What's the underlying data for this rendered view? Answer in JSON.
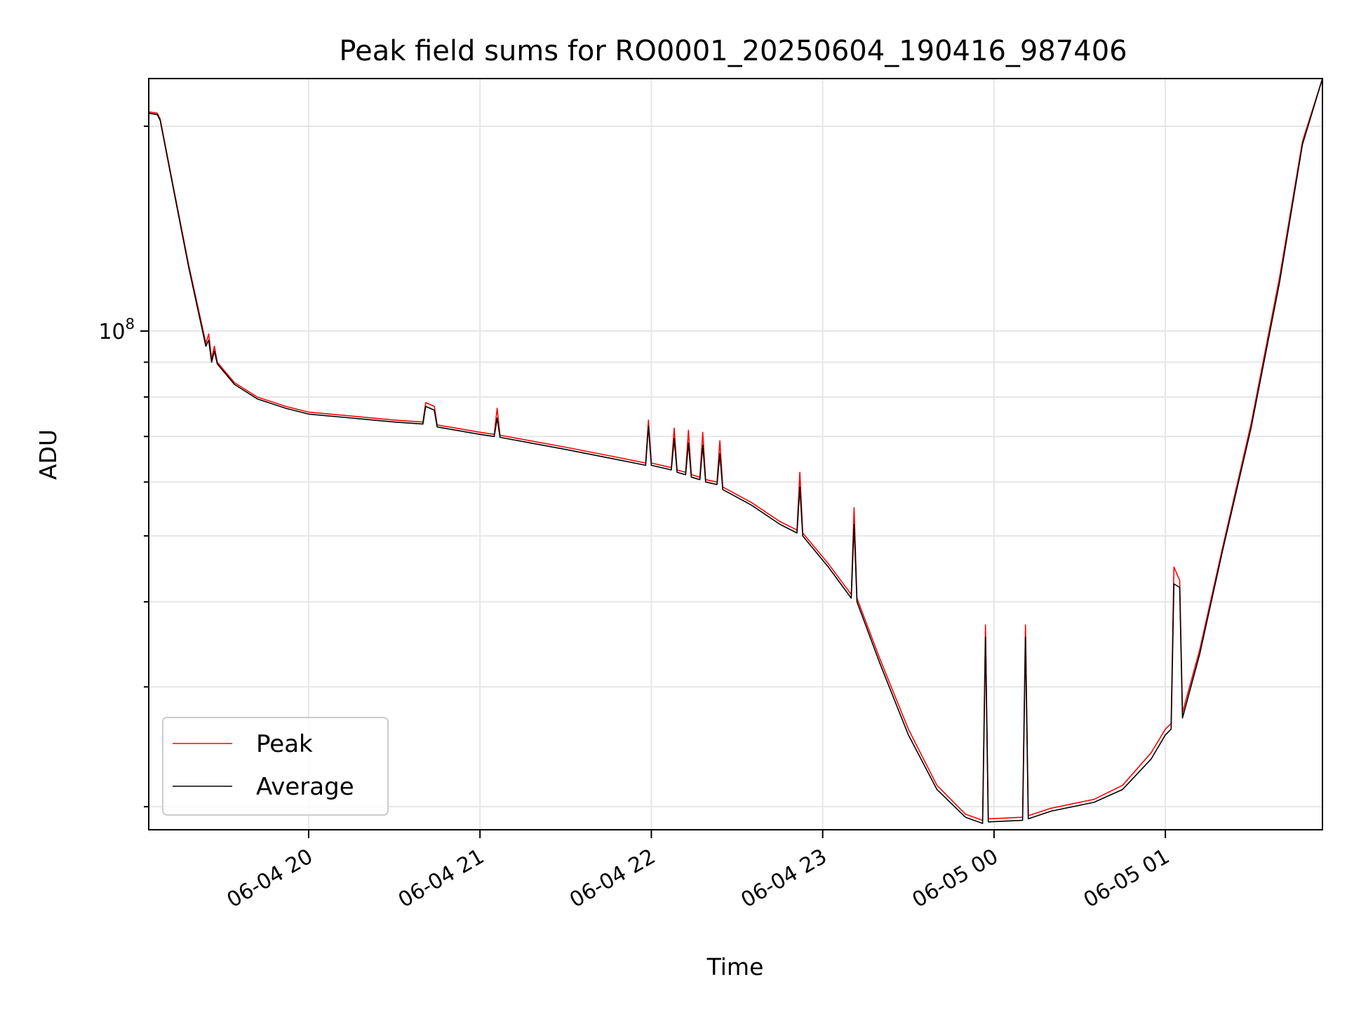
{
  "chart_data": {
    "type": "line",
    "title": "Peak field sums for RO0001_20250604_190416_987406",
    "xlabel": "Time",
    "ylabel": "ADU",
    "x_unit": "datetime",
    "xlim": [
      "2025-06-04 19:04",
      "2025-06-05 01:55"
    ],
    "ylim": [
      18500000,
      235000000
    ],
    "yscale": "log",
    "grid": true,
    "legend_position": "lower-left",
    "x_ticks": [
      {
        "value": "2025-06-04 20:00",
        "label": "06-04 20"
      },
      {
        "value": "2025-06-04 21:00",
        "label": "06-04 21"
      },
      {
        "value": "2025-06-04 22:00",
        "label": "06-04 22"
      },
      {
        "value": "2025-06-04 23:00",
        "label": "06-04 23"
      },
      {
        "value": "2025-06-05 00:00",
        "label": "06-05 00"
      },
      {
        "value": "2025-06-05 01:00",
        "label": "06-05 01"
      }
    ],
    "y_ticks": [
      {
        "value": 100000000,
        "label_base": "10",
        "label_exp": "8"
      }
    ],
    "y_minor_ticks": [
      20000000,
      30000000,
      40000000,
      50000000,
      60000000,
      70000000,
      80000000,
      90000000,
      200000000
    ],
    "series": [
      {
        "name": "Peak",
        "color": "#ff0000",
        "points": [
          [
            "2025-06-04 19:04",
            210000000
          ],
          [
            "2025-06-04 19:07",
            209000000
          ],
          [
            "2025-06-04 19:08",
            205000000
          ],
          [
            "2025-06-04 19:13",
            160000000
          ],
          [
            "2025-06-04 19:18",
            125000000
          ],
          [
            "2025-06-04 19:24",
            96000000
          ],
          [
            "2025-06-04 19:25",
            99000000
          ],
          [
            "2025-06-04 19:26",
            91000000
          ],
          [
            "2025-06-04 19:27",
            95000000
          ],
          [
            "2025-06-04 19:28",
            90000000
          ],
          [
            "2025-06-04 19:34",
            84000000
          ],
          [
            "2025-06-04 19:42",
            80000000
          ],
          [
            "2025-06-04 19:52",
            77500000
          ],
          [
            "2025-06-04 20:00",
            76000000
          ],
          [
            "2025-06-04 20:15",
            75000000
          ],
          [
            "2025-06-04 20:30",
            74000000
          ],
          [
            "2025-06-04 20:40",
            73500000
          ],
          [
            "2025-06-04 20:41",
            78500000
          ],
          [
            "2025-06-04 20:44",
            77500000
          ],
          [
            "2025-06-04 20:45",
            72800000
          ],
          [
            "2025-06-04 21:00",
            71000000
          ],
          [
            "2025-06-04 21:05",
            70500000
          ],
          [
            "2025-06-04 21:06",
            77000000
          ],
          [
            "2025-06-04 21:07",
            70300000
          ],
          [
            "2025-06-04 21:30",
            67500000
          ],
          [
            "2025-06-04 21:50",
            65000000
          ],
          [
            "2025-06-04 21:58",
            64000000
          ],
          [
            "2025-06-04 21:59",
            74000000
          ],
          [
            "2025-06-04 22:00",
            64000000
          ],
          [
            "2025-06-04 22:07",
            63000000
          ],
          [
            "2025-06-04 22:08",
            72000000
          ],
          [
            "2025-06-04 22:09",
            62500000
          ],
          [
            "2025-06-04 22:12",
            62000000
          ],
          [
            "2025-06-04 22:13",
            71500000
          ],
          [
            "2025-06-04 22:14",
            61500000
          ],
          [
            "2025-06-04 22:17",
            61000000
          ],
          [
            "2025-06-04 22:18",
            71000000
          ],
          [
            "2025-06-04 22:19",
            60500000
          ],
          [
            "2025-06-04 22:23",
            60000000
          ],
          [
            "2025-06-04 22:24",
            69000000
          ],
          [
            "2025-06-04 22:25",
            59000000
          ],
          [
            "2025-06-04 22:35",
            56000000
          ],
          [
            "2025-06-04 22:45",
            52500000
          ],
          [
            "2025-06-04 22:51",
            51000000
          ],
          [
            "2025-06-04 22:52",
            62000000
          ],
          [
            "2025-06-04 22:53",
            50500000
          ],
          [
            "2025-06-04 23:02",
            45500000
          ],
          [
            "2025-06-04 23:10",
            41000000
          ],
          [
            "2025-06-04 23:11",
            55000000
          ],
          [
            "2025-06-04 23:12",
            40500000
          ],
          [
            "2025-06-04 23:20",
            33000000
          ],
          [
            "2025-06-04 23:30",
            26000000
          ],
          [
            "2025-06-04 23:40",
            21500000
          ],
          [
            "2025-06-04 23:50",
            19500000
          ],
          [
            "2025-06-04 23:56",
            19100000
          ],
          [
            "2025-06-04 23:57",
            37000000
          ],
          [
            "2025-06-04 23:58",
            19200000
          ],
          [
            "2025-06-05 00:10",
            19300000
          ],
          [
            "2025-06-05 00:11",
            37000000
          ],
          [
            "2025-06-05 00:12",
            19400000
          ],
          [
            "2025-06-05 00:20",
            19900000
          ],
          [
            "2025-06-05 00:35",
            20500000
          ],
          [
            "2025-06-05 00:45",
            21500000
          ],
          [
            "2025-06-05 00:55",
            24000000
          ],
          [
            "2025-06-05 01:00",
            26000000
          ],
          [
            "2025-06-05 01:02",
            26500000
          ],
          [
            "2025-06-05 01:03",
            45000000
          ],
          [
            "2025-06-05 01:05",
            43000000
          ],
          [
            "2025-06-05 01:06",
            27500000
          ],
          [
            "2025-06-05 01:12",
            34000000
          ],
          [
            "2025-06-05 01:20",
            48000000
          ],
          [
            "2025-06-05 01:30",
            73000000
          ],
          [
            "2025-06-05 01:40",
            120000000
          ],
          [
            "2025-06-05 01:48",
            190000000
          ],
          [
            "2025-06-05 01:55",
            235000000
          ]
        ]
      },
      {
        "name": "Average",
        "color": "#000000",
        "points": [
          [
            "2025-06-04 19:04",
            209000000
          ],
          [
            "2025-06-04 19:07",
            208000000
          ],
          [
            "2025-06-04 19:08",
            204000000
          ],
          [
            "2025-06-04 19:13",
            159000000
          ],
          [
            "2025-06-04 19:18",
            124000000
          ],
          [
            "2025-06-04 19:24",
            95000000
          ],
          [
            "2025-06-04 19:25",
            97000000
          ],
          [
            "2025-06-04 19:26",
            90000000
          ],
          [
            "2025-06-04 19:27",
            93500000
          ],
          [
            "2025-06-04 19:28",
            89500000
          ],
          [
            "2025-06-04 19:34",
            83500000
          ],
          [
            "2025-06-04 19:42",
            79500000
          ],
          [
            "2025-06-04 19:52",
            77000000
          ],
          [
            "2025-06-04 20:00",
            75500000
          ],
          [
            "2025-06-04 20:15",
            74500000
          ],
          [
            "2025-06-04 20:30",
            73500000
          ],
          [
            "2025-06-04 20:40",
            73000000
          ],
          [
            "2025-06-04 20:41",
            77500000
          ],
          [
            "2025-06-04 20:44",
            76500000
          ],
          [
            "2025-06-04 20:45",
            72300000
          ],
          [
            "2025-06-04 21:00",
            70500000
          ],
          [
            "2025-06-04 21:05",
            70000000
          ],
          [
            "2025-06-04 21:06",
            74500000
          ],
          [
            "2025-06-04 21:07",
            69800000
          ],
          [
            "2025-06-04 21:30",
            67000000
          ],
          [
            "2025-06-04 21:50",
            64500000
          ],
          [
            "2025-06-04 21:58",
            63500000
          ],
          [
            "2025-06-04 21:59",
            72500000
          ],
          [
            "2025-06-04 22:00",
            63500000
          ],
          [
            "2025-06-04 22:07",
            62500000
          ],
          [
            "2025-06-04 22:08",
            69500000
          ],
          [
            "2025-06-04 22:09",
            62000000
          ],
          [
            "2025-06-04 22:12",
            61500000
          ],
          [
            "2025-06-04 22:13",
            68500000
          ],
          [
            "2025-06-04 22:14",
            61000000
          ],
          [
            "2025-06-04 22:17",
            60500000
          ],
          [
            "2025-06-04 22:18",
            68000000
          ],
          [
            "2025-06-04 22:19",
            60000000
          ],
          [
            "2025-06-04 22:23",
            59500000
          ],
          [
            "2025-06-04 22:24",
            66000000
          ],
          [
            "2025-06-04 22:25",
            58500000
          ],
          [
            "2025-06-04 22:35",
            55500000
          ],
          [
            "2025-06-04 22:45",
            52000000
          ],
          [
            "2025-06-04 22:51",
            50500000
          ],
          [
            "2025-06-04 22:52",
            59000000
          ],
          [
            "2025-06-04 22:53",
            50000000
          ],
          [
            "2025-06-04 23:02",
            45000000
          ],
          [
            "2025-06-04 23:10",
            40500000
          ],
          [
            "2025-06-04 23:11",
            52000000
          ],
          [
            "2025-06-04 23:12",
            40000000
          ],
          [
            "2025-06-04 23:20",
            32500000
          ],
          [
            "2025-06-04 23:30",
            25500000
          ],
          [
            "2025-06-04 23:40",
            21200000
          ],
          [
            "2025-06-04 23:50",
            19300000
          ],
          [
            "2025-06-04 23:56",
            18900000
          ],
          [
            "2025-06-04 23:57",
            35500000
          ],
          [
            "2025-06-04 23:58",
            19000000
          ],
          [
            "2025-06-05 00:10",
            19100000
          ],
          [
            "2025-06-05 00:11",
            35500000
          ],
          [
            "2025-06-05 00:12",
            19200000
          ],
          [
            "2025-06-05 00:20",
            19700000
          ],
          [
            "2025-06-05 00:35",
            20300000
          ],
          [
            "2025-06-05 00:45",
            21200000
          ],
          [
            "2025-06-05 00:55",
            23500000
          ],
          [
            "2025-06-05 01:00",
            25500000
          ],
          [
            "2025-06-05 01:02",
            26000000
          ],
          [
            "2025-06-05 01:03",
            42500000
          ],
          [
            "2025-06-05 01:05",
            42000000
          ],
          [
            "2025-06-05 01:06",
            27000000
          ],
          [
            "2025-06-05 01:12",
            33500000
          ],
          [
            "2025-06-05 01:20",
            47500000
          ],
          [
            "2025-06-05 01:30",
            72000000
          ],
          [
            "2025-06-05 01:40",
            118000000
          ],
          [
            "2025-06-05 01:48",
            188000000
          ],
          [
            "2025-06-05 01:55",
            235000000
          ]
        ]
      }
    ]
  }
}
